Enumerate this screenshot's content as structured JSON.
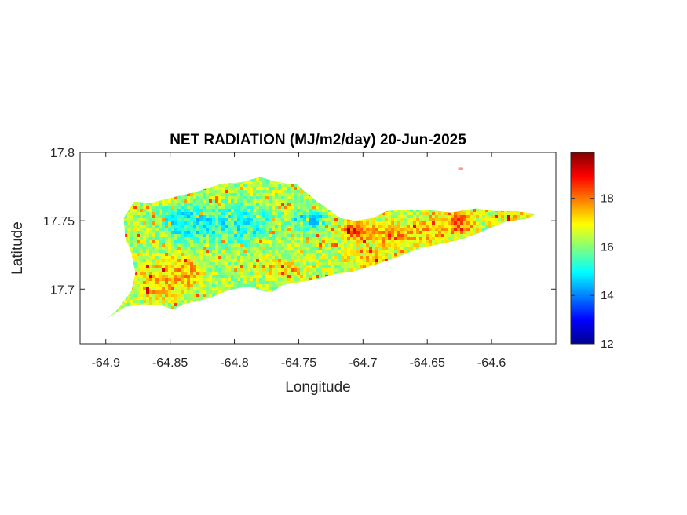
{
  "chart_data": {
    "type": "heatmap",
    "title": "NET RADIATION (MJ/m2/day) 20-Jun-2025",
    "xlabel": "Longitude",
    "ylabel": "Latitude",
    "xlim": [
      -64.92,
      -64.55
    ],
    "ylim": [
      17.66,
      17.8
    ],
    "x_ticks": [
      {
        "value": -64.9,
        "label": "-64.9"
      },
      {
        "value": -64.85,
        "label": "-64.85"
      },
      {
        "value": -64.8,
        "label": "-64.8"
      },
      {
        "value": -64.75,
        "label": "-64.75"
      },
      {
        "value": -64.7,
        "label": "-64.7"
      },
      {
        "value": -64.65,
        "label": "-64.65"
      },
      {
        "value": -64.6,
        "label": "-64.6"
      }
    ],
    "y_ticks": [
      {
        "value": 17.7,
        "label": "17.7"
      },
      {
        "value": 17.75,
        "label": "17.75"
      },
      {
        "value": 17.8,
        "label": "17.8"
      }
    ],
    "colorbar": {
      "colormap": "jet",
      "range": [
        12,
        19.9
      ],
      "ticks": [
        {
          "value": 12,
          "label": "12"
        },
        {
          "value": 14,
          "label": "14"
        },
        {
          "value": 16,
          "label": "16"
        },
        {
          "value": 18,
          "label": "18"
        }
      ]
    },
    "grid": false,
    "land_outline": [
      [
        -64.9,
        17.678
      ],
      [
        -64.893,
        17.683
      ],
      [
        -64.886,
        17.691
      ],
      [
        -64.88,
        17.699
      ],
      [
        -64.877,
        17.712
      ],
      [
        -64.88,
        17.726
      ],
      [
        -64.885,
        17.738
      ],
      [
        -64.886,
        17.752
      ],
      [
        -64.878,
        17.764
      ],
      [
        -64.865,
        17.763
      ],
      [
        -64.848,
        17.767
      ],
      [
        -64.83,
        17.771
      ],
      [
        -64.81,
        17.777
      ],
      [
        -64.795,
        17.778
      ],
      [
        -64.78,
        17.782
      ],
      [
        -64.77,
        17.779
      ],
      [
        -64.758,
        17.777
      ],
      [
        -64.752,
        17.777
      ],
      [
        -64.746,
        17.772
      ],
      [
        -64.737,
        17.765
      ],
      [
        -64.728,
        17.759
      ],
      [
        -64.718,
        17.752
      ],
      [
        -64.707,
        17.75
      ],
      [
        -64.692,
        17.752
      ],
      [
        -64.682,
        17.757
      ],
      [
        -64.667,
        17.758
      ],
      [
        -64.65,
        17.758
      ],
      [
        -64.632,
        17.756
      ],
      [
        -64.612,
        17.759
      ],
      [
        -64.598,
        17.757
      ],
      [
        -64.58,
        17.757
      ],
      [
        -64.566,
        17.755
      ],
      [
        -64.57,
        17.752
      ],
      [
        -64.59,
        17.749
      ],
      [
        -64.61,
        17.741
      ],
      [
        -64.625,
        17.736
      ],
      [
        -64.64,
        17.733
      ],
      [
        -64.655,
        17.73
      ],
      [
        -64.672,
        17.724
      ],
      [
        -64.69,
        17.718
      ],
      [
        -64.707,
        17.713
      ],
      [
        -64.722,
        17.711
      ],
      [
        -64.737,
        17.707
      ],
      [
        -64.75,
        17.705
      ],
      [
        -64.763,
        17.703
      ],
      [
        -64.77,
        17.698
      ],
      [
        -64.775,
        17.698
      ],
      [
        -64.79,
        17.702
      ],
      [
        -64.805,
        17.699
      ],
      [
        -64.818,
        17.694
      ],
      [
        -64.83,
        17.691
      ],
      [
        -64.84,
        17.689
      ],
      [
        -64.848,
        17.685
      ],
      [
        -64.856,
        17.688
      ],
      [
        -64.872,
        17.689
      ],
      [
        -64.885,
        17.687
      ],
      [
        -64.895,
        17.681
      ]
    ],
    "islet": {
      "lon": [
        -64.626,
        -64.622
      ],
      "lat": 17.788
    },
    "value_regions": [
      {
        "lon": -64.835,
        "lat": 17.748,
        "value": 14.6,
        "spread": [
          0.02,
          0.009
        ]
      },
      {
        "lon": -64.795,
        "lat": 17.748,
        "value": 14.8,
        "spread": [
          0.018,
          0.01
        ]
      },
      {
        "lon": -64.742,
        "lat": 17.75,
        "value": 14.2,
        "spread": [
          0.01,
          0.005
        ]
      },
      {
        "lon": -64.868,
        "lat": 17.74,
        "value": 16.4,
        "spread": [
          0.012,
          0.012
        ]
      },
      {
        "lon": -64.86,
        "lat": 17.705,
        "value": 17.8,
        "spread": [
          0.012,
          0.01
        ]
      },
      {
        "lon": -64.84,
        "lat": 17.712,
        "value": 17.9,
        "spread": [
          0.01,
          0.01
        ]
      },
      {
        "lon": -64.705,
        "lat": 17.743,
        "value": 19.0,
        "spread": [
          0.009,
          0.006
        ]
      },
      {
        "lon": -64.678,
        "lat": 17.74,
        "value": 18.2,
        "spread": [
          0.012,
          0.007
        ]
      },
      {
        "lon": -64.65,
        "lat": 17.742,
        "value": 17.8,
        "spread": [
          0.012,
          0.008
        ]
      },
      {
        "lon": -64.625,
        "lat": 17.748,
        "value": 18.6,
        "spread": [
          0.01,
          0.006
        ]
      },
      {
        "lon": -64.695,
        "lat": 17.722,
        "value": 17.4,
        "spread": [
          0.015,
          0.006
        ]
      },
      {
        "lon": -64.76,
        "lat": 17.713,
        "value": 17.2,
        "spread": [
          0.012,
          0.006
        ]
      },
      {
        "lon": -64.585,
        "lat": 17.755,
        "value": 17.5,
        "spread": [
          0.01,
          0.004
        ]
      }
    ],
    "background_value": 16.3
  }
}
